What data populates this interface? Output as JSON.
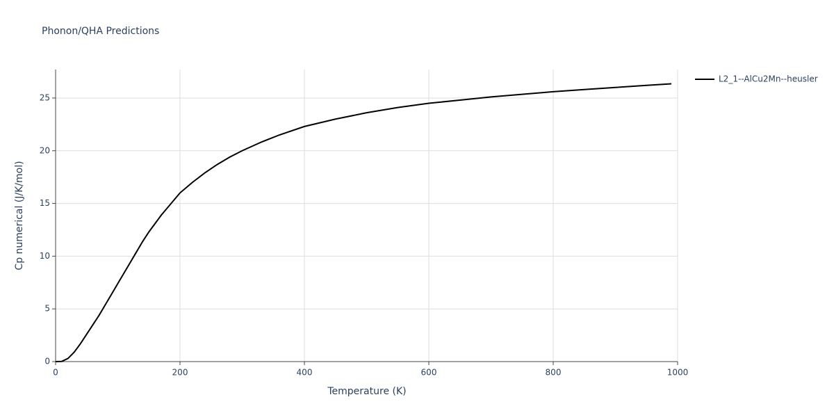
{
  "chart_data": {
    "type": "line",
    "title": "Phonon/QHA Predictions",
    "x_label": "Temperature (K)",
    "y_label": "Cp numerical (J/K/mol)",
    "x": [
      0,
      10,
      20,
      30,
      40,
      50,
      60,
      70,
      80,
      90,
      100,
      110,
      120,
      130,
      140,
      150,
      160,
      170,
      180,
      190,
      200,
      220,
      240,
      260,
      280,
      300,
      330,
      360,
      400,
      450,
      500,
      550,
      600,
      650,
      700,
      750,
      800,
      850,
      900,
      950,
      990
    ],
    "series": [
      {
        "name": "L2_1--AlCu2Mn--heusler",
        "color": "#000000",
        "values": [
          0,
          0.02,
          0.3,
          0.9,
          1.7,
          2.6,
          3.5,
          4.4,
          5.4,
          6.4,
          7.4,
          8.4,
          9.4,
          10.4,
          11.4,
          12.3,
          13.1,
          13.9,
          14.6,
          15.3,
          16.0,
          17.0,
          17.9,
          18.7,
          19.4,
          20.0,
          20.8,
          21.5,
          22.3,
          23.0,
          23.6,
          24.1,
          24.5,
          24.8,
          25.1,
          25.35,
          25.6,
          25.8,
          26.0,
          26.2,
          26.35
        ]
      }
    ],
    "xlim": [
      0,
      1000
    ],
    "xticks": [
      0,
      200,
      400,
      600,
      800,
      1000
    ],
    "ylim": [
      0,
      27.7
    ],
    "yticks": [
      0,
      5,
      10,
      15,
      20,
      25
    ],
    "grid": true,
    "legend": "right"
  }
}
